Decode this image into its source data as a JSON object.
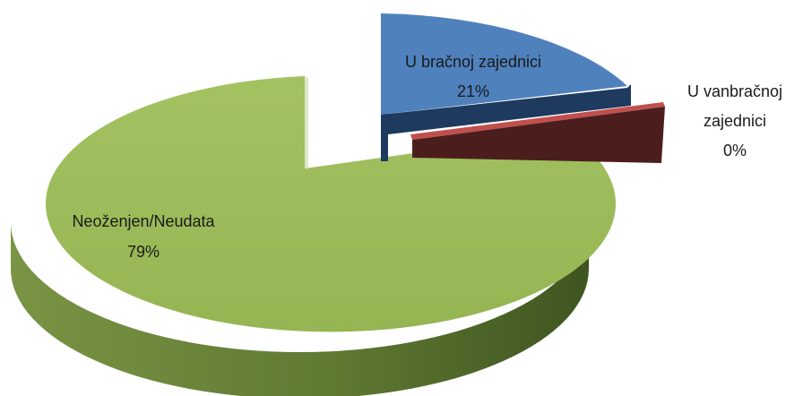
{
  "chart_data": {
    "type": "pie",
    "title": "",
    "legend": "none",
    "slices": [
      {
        "name": "U bračnoj zajednici",
        "value_pct": 21,
        "label_pct": "21%",
        "color": "#4F81BD",
        "side_color": "#1F3A5F"
      },
      {
        "name": "U vanbračnoj zajednici",
        "label_lines": [
          "U vanbračnoj",
          "zajednici"
        ],
        "value_pct": 0,
        "label_pct": "0%",
        "color": "#C0504D",
        "side_color": "#4B1E1D"
      },
      {
        "name": "Neoženjen/Neudata",
        "value_pct": 79,
        "label_pct": "79%",
        "color": "#9BBB59",
        "side_color": "#4E6A2A"
      }
    ]
  }
}
